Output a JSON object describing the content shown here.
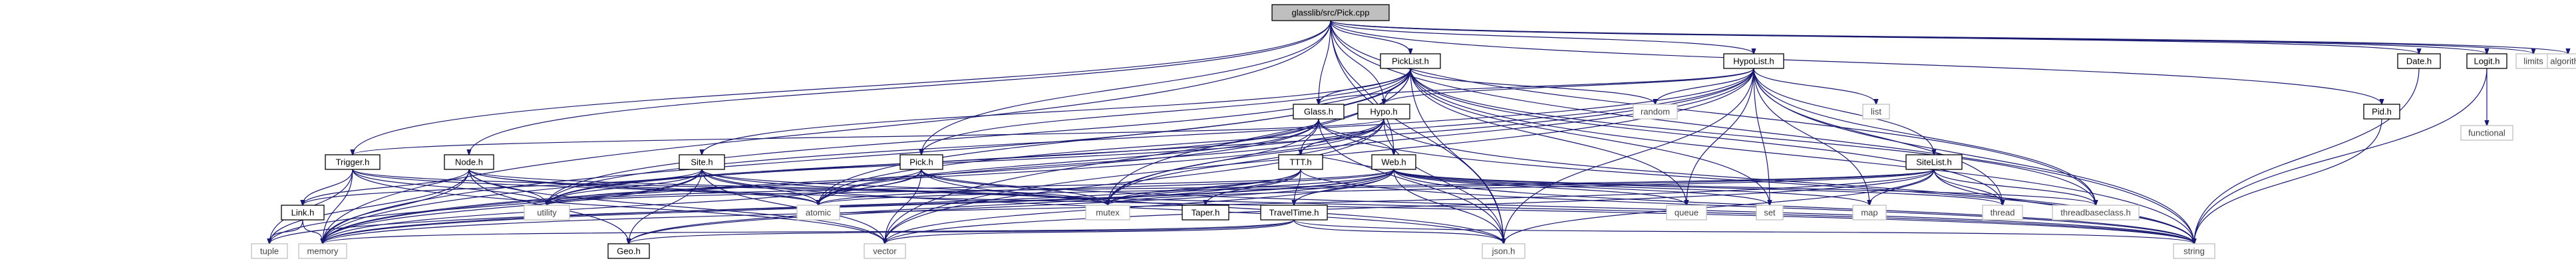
{
  "graph": {
    "root": "glasslib/src/Pick.cpp",
    "colors": {
      "root_fill": "#bfbfbf",
      "node_fill": "#ffffff",
      "node_border": "#000000",
      "system_border": "#bfbfbf",
      "edge": "#191970"
    },
    "nodes": [
      {
        "id": "pickcpp",
        "label": "glasslib/src/Pick.cpp",
        "kind": "root"
      },
      {
        "id": "picklist",
        "label": "PickList.h",
        "kind": "file"
      },
      {
        "id": "hypolist",
        "label": "HypoList.h",
        "kind": "file"
      },
      {
        "id": "date",
        "label": "Date.h",
        "kind": "file"
      },
      {
        "id": "logit",
        "label": "Logit.h",
        "kind": "file"
      },
      {
        "id": "limits",
        "label": "limits",
        "kind": "system"
      },
      {
        "id": "algorithm",
        "label": "algorithm",
        "kind": "system"
      },
      {
        "id": "glass",
        "label": "Glass.h",
        "kind": "file"
      },
      {
        "id": "hypo",
        "label": "Hypo.h",
        "kind": "file"
      },
      {
        "id": "random",
        "label": "random",
        "kind": "system"
      },
      {
        "id": "list",
        "label": "list",
        "kind": "system"
      },
      {
        "id": "pid",
        "label": "Pid.h",
        "kind": "file"
      },
      {
        "id": "functional",
        "label": "functional",
        "kind": "system"
      },
      {
        "id": "trigger",
        "label": "Trigger.h",
        "kind": "file"
      },
      {
        "id": "node",
        "label": "Node.h",
        "kind": "file"
      },
      {
        "id": "site",
        "label": "Site.h",
        "kind": "file"
      },
      {
        "id": "pick",
        "label": "Pick.h",
        "kind": "file"
      },
      {
        "id": "ttt",
        "label": "TTT.h",
        "kind": "file"
      },
      {
        "id": "web",
        "label": "Web.h",
        "kind": "file"
      },
      {
        "id": "sitelist",
        "label": "SiteList.h",
        "kind": "file"
      },
      {
        "id": "link",
        "label": "Link.h",
        "kind": "file"
      },
      {
        "id": "utility",
        "label": "utility",
        "kind": "system"
      },
      {
        "id": "atomic",
        "label": "atomic",
        "kind": "system"
      },
      {
        "id": "mutex",
        "label": "mutex",
        "kind": "system"
      },
      {
        "id": "taper",
        "label": "Taper.h",
        "kind": "file"
      },
      {
        "id": "traveltime",
        "label": "TravelTime.h",
        "kind": "file"
      },
      {
        "id": "queue",
        "label": "queue",
        "kind": "system"
      },
      {
        "id": "set",
        "label": "set",
        "kind": "system"
      },
      {
        "id": "map",
        "label": "map",
        "kind": "system"
      },
      {
        "id": "thread",
        "label": "thread",
        "kind": "system"
      },
      {
        "id": "threadbaseclass",
        "label": "threadbaseclass.h",
        "kind": "system"
      },
      {
        "id": "tuple",
        "label": "tuple",
        "kind": "system"
      },
      {
        "id": "memory",
        "label": "memory",
        "kind": "system"
      },
      {
        "id": "geo",
        "label": "Geo.h",
        "kind": "file"
      },
      {
        "id": "vector",
        "label": "vector",
        "kind": "system"
      },
      {
        "id": "json",
        "label": "json.h",
        "kind": "system"
      },
      {
        "id": "string",
        "label": "string",
        "kind": "system"
      }
    ],
    "edges": [
      [
        "pickcpp",
        "picklist"
      ],
      [
        "pickcpp",
        "hypolist"
      ],
      [
        "pickcpp",
        "date"
      ],
      [
        "pickcpp",
        "logit"
      ],
      [
        "pickcpp",
        "limits"
      ],
      [
        "pickcpp",
        "algorithm"
      ],
      [
        "pickcpp",
        "glass"
      ],
      [
        "pickcpp",
        "hypo"
      ],
      [
        "pickcpp",
        "pid"
      ],
      [
        "pickcpp",
        "trigger"
      ],
      [
        "pickcpp",
        "node"
      ],
      [
        "pickcpp",
        "pick"
      ],
      [
        "pickcpp",
        "web"
      ],
      [
        "pickcpp",
        "memory"
      ],
      [
        "pickcpp",
        "string"
      ],
      [
        "pickcpp",
        "threadbaseclass"
      ],
      [
        "pickcpp",
        "json"
      ],
      [
        "picklist",
        "glass"
      ],
      [
        "picklist",
        "hypo"
      ],
      [
        "picklist",
        "site"
      ],
      [
        "picklist",
        "pick"
      ],
      [
        "picklist",
        "random"
      ],
      [
        "picklist",
        "mutex"
      ],
      [
        "picklist",
        "atomic"
      ],
      [
        "picklist",
        "queue"
      ],
      [
        "picklist",
        "set"
      ],
      [
        "picklist",
        "thread"
      ],
      [
        "picklist",
        "threadbaseclass"
      ],
      [
        "picklist",
        "string"
      ],
      [
        "picklist",
        "vector"
      ],
      [
        "picklist",
        "json"
      ],
      [
        "picklist",
        "memory"
      ],
      [
        "picklist",
        "utility"
      ],
      [
        "hypolist",
        "glass"
      ],
      [
        "hypolist",
        "hypo"
      ],
      [
        "hypolist",
        "sitelist"
      ],
      [
        "hypolist",
        "random"
      ],
      [
        "hypolist",
        "list"
      ],
      [
        "hypolist",
        "map"
      ],
      [
        "hypolist",
        "set"
      ],
      [
        "hypolist",
        "queue"
      ],
      [
        "hypolist",
        "thread"
      ],
      [
        "hypolist",
        "threadbaseclass"
      ],
      [
        "hypolist",
        "mutex"
      ],
      [
        "hypolist",
        "string"
      ],
      [
        "hypolist",
        "json"
      ],
      [
        "hypolist",
        "vector"
      ],
      [
        "hypolist",
        "memory"
      ],
      [
        "hypolist",
        "atomic"
      ],
      [
        "hypolist",
        "utility"
      ],
      [
        "date",
        "string"
      ],
      [
        "logit",
        "functional"
      ],
      [
        "logit",
        "string"
      ],
      [
        "pid",
        "string"
      ],
      [
        "glass",
        "ttt"
      ],
      [
        "glass",
        "web"
      ],
      [
        "glass",
        "atomic"
      ],
      [
        "glass",
        "mutex"
      ],
      [
        "glass",
        "utility"
      ],
      [
        "glass",
        "json"
      ],
      [
        "glass",
        "memory"
      ],
      [
        "glass",
        "string"
      ],
      [
        "hypo",
        "ttt"
      ],
      [
        "hypo",
        "trigger"
      ],
      [
        "hypo",
        "json"
      ],
      [
        "hypo",
        "atomic"
      ],
      [
        "hypo",
        "mutex"
      ],
      [
        "hypo",
        "vector"
      ],
      [
        "hypo",
        "string"
      ],
      [
        "hypo",
        "memory"
      ],
      [
        "hypo",
        "utility"
      ],
      [
        "trigger",
        "link"
      ],
      [
        "trigger",
        "utility"
      ],
      [
        "trigger",
        "memory"
      ],
      [
        "trigger",
        "tuple"
      ],
      [
        "trigger",
        "vector"
      ],
      [
        "trigger",
        "mutex"
      ],
      [
        "trigger",
        "atomic"
      ],
      [
        "node",
        "link"
      ],
      [
        "node",
        "geo"
      ],
      [
        "node",
        "utility"
      ],
      [
        "node",
        "memory"
      ],
      [
        "node",
        "mutex"
      ],
      [
        "node",
        "atomic"
      ],
      [
        "node",
        "vector"
      ],
      [
        "node",
        "string"
      ],
      [
        "node",
        "tuple"
      ],
      [
        "site",
        "link"
      ],
      [
        "site",
        "geo"
      ],
      [
        "site",
        "utility"
      ],
      [
        "site",
        "memory"
      ],
      [
        "site",
        "mutex"
      ],
      [
        "site",
        "atomic"
      ],
      [
        "site",
        "vector"
      ],
      [
        "site",
        "string"
      ],
      [
        "site",
        "json"
      ],
      [
        "site",
        "tuple"
      ],
      [
        "pick",
        "json"
      ],
      [
        "pick",
        "memory"
      ],
      [
        "pick",
        "mutex"
      ],
      [
        "pick",
        "atomic"
      ],
      [
        "pick",
        "vector"
      ],
      [
        "pick",
        "string"
      ],
      [
        "pick",
        "utility"
      ],
      [
        "ttt",
        "taper"
      ],
      [
        "ttt",
        "traveltime"
      ],
      [
        "ttt",
        "geo"
      ],
      [
        "ttt",
        "mutex"
      ],
      [
        "ttt",
        "memory"
      ],
      [
        "ttt",
        "string"
      ],
      [
        "web",
        "ttt"
      ],
      [
        "web",
        "traveltime"
      ],
      [
        "web",
        "json"
      ],
      [
        "web",
        "geo"
      ],
      [
        "web",
        "vector"
      ],
      [
        "web",
        "queue"
      ],
      [
        "web",
        "set"
      ],
      [
        "web",
        "map"
      ],
      [
        "web",
        "thread"
      ],
      [
        "web",
        "threadbaseclass"
      ],
      [
        "web",
        "mutex"
      ],
      [
        "web",
        "atomic"
      ],
      [
        "web",
        "string"
      ],
      [
        "web",
        "memory"
      ],
      [
        "web",
        "utility"
      ],
      [
        "web",
        "tuple"
      ],
      [
        "sitelist",
        "map"
      ],
      [
        "sitelist",
        "thread"
      ],
      [
        "sitelist",
        "threadbaseclass"
      ],
      [
        "sitelist",
        "json"
      ],
      [
        "sitelist",
        "vector"
      ],
      [
        "sitelist",
        "mutex"
      ],
      [
        "sitelist",
        "atomic"
      ],
      [
        "sitelist",
        "utility"
      ],
      [
        "sitelist",
        "string"
      ],
      [
        "sitelist",
        "memory"
      ],
      [
        "link",
        "tuple"
      ],
      [
        "link",
        "memory"
      ],
      [
        "traveltime",
        "geo"
      ],
      [
        "traveltime",
        "vector"
      ],
      [
        "traveltime",
        "json"
      ],
      [
        "traveltime",
        "memory"
      ],
      [
        "traveltime",
        "string"
      ]
    ]
  }
}
